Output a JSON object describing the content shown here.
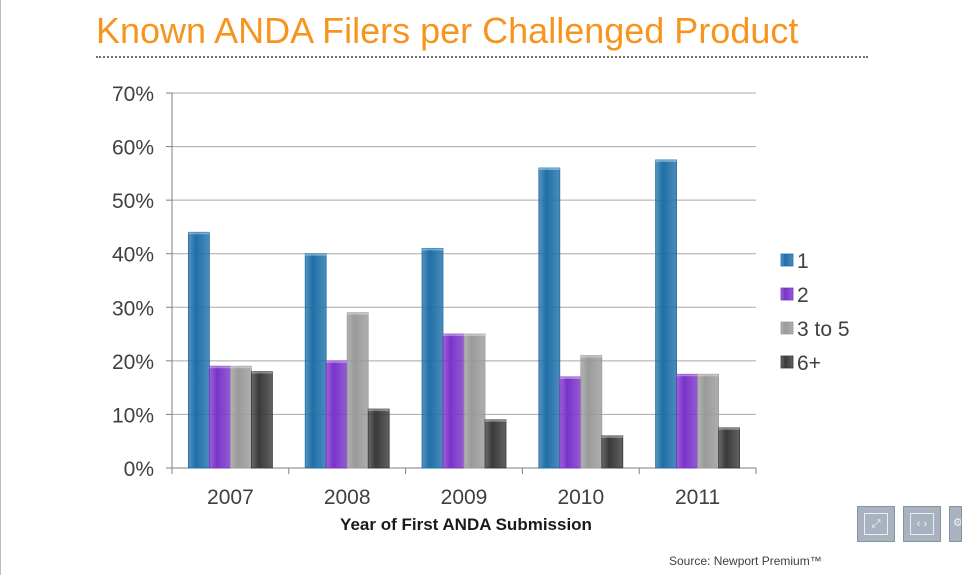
{
  "slide": {
    "title": "Known ANDA Filers per Challenged Product",
    "source": "Source: Newport Premium™"
  },
  "controls": [
    {
      "name": "fullscreen-button",
      "icon": "fullscreen-icon",
      "glyph": "⤢"
    },
    {
      "name": "prev-next-button",
      "icon": "prev-next-icon",
      "glyph": "‹ ›"
    },
    {
      "name": "zoom-button",
      "icon": "zoom-icon",
      "glyph": "⚙"
    }
  ],
  "colors": {
    "title": "#f7941d",
    "series": [
      "#1f6fa8",
      "#7a33c9",
      "#9a9a9a",
      "#3a3a3a"
    ]
  },
  "chart_data": {
    "type": "bar",
    "categories": [
      "2007",
      "2008",
      "2009",
      "2010",
      "2011"
    ],
    "series": [
      {
        "name": "1",
        "values": [
          44,
          40,
          41,
          56,
          57.5
        ]
      },
      {
        "name": "2",
        "values": [
          19,
          20,
          25,
          17,
          17.5
        ]
      },
      {
        "name": "3 to 5",
        "values": [
          19,
          29,
          25,
          21,
          17.5
        ]
      },
      {
        "name": "6+",
        "values": [
          18,
          11,
          9,
          6,
          7.5
        ]
      }
    ],
    "xlabel": "Year of First ANDA Submission",
    "ylabel": "",
    "ylim": [
      0,
      70
    ],
    "yticks": [
      0,
      10,
      20,
      30,
      40,
      50,
      60,
      70
    ],
    "ytick_labels": [
      "0%",
      "10%",
      "20%",
      "30%",
      "40%",
      "50%",
      "60%",
      "70%"
    ],
    "grid": true,
    "legend_position": "right"
  }
}
